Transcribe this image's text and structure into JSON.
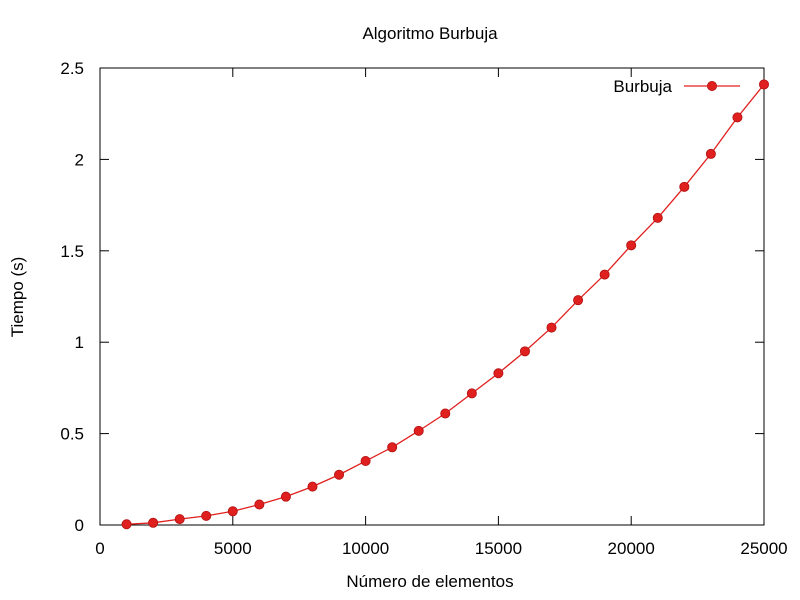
{
  "chart_data": {
    "type": "line",
    "title": "Algoritmo Burbuja",
    "xlabel": "Número de elementos",
    "ylabel": "Tiempo (s)",
    "xlim": [
      0,
      25000
    ],
    "ylim": [
      0,
      2.5
    ],
    "xticks": [
      0,
      5000,
      10000,
      15000,
      20000,
      25000
    ],
    "yticks": [
      0,
      0.5,
      1,
      1.5,
      2,
      2.5
    ],
    "ytick_labels": [
      "0",
      "0.5",
      "1",
      "1.5",
      "2",
      "2.5"
    ],
    "grid": false,
    "legend_position": "top-right",
    "series": [
      {
        "name": "Burbuja",
        "color": "#e0201e",
        "marker": "circle",
        "x": [
          1000,
          2000,
          3000,
          4000,
          5000,
          6000,
          7000,
          8000,
          9000,
          10000,
          11000,
          12000,
          13000,
          14000,
          15000,
          16000,
          17000,
          18000,
          19000,
          20000,
          21000,
          22000,
          23000,
          24000,
          25000
        ],
        "y": [
          0.004,
          0.012,
          0.032,
          0.05,
          0.075,
          0.112,
          0.155,
          0.21,
          0.275,
          0.35,
          0.425,
          0.515,
          0.61,
          0.72,
          0.83,
          0.95,
          1.08,
          1.23,
          1.37,
          1.53,
          1.68,
          1.85,
          2.03,
          2.23,
          2.41
        ]
      }
    ]
  }
}
